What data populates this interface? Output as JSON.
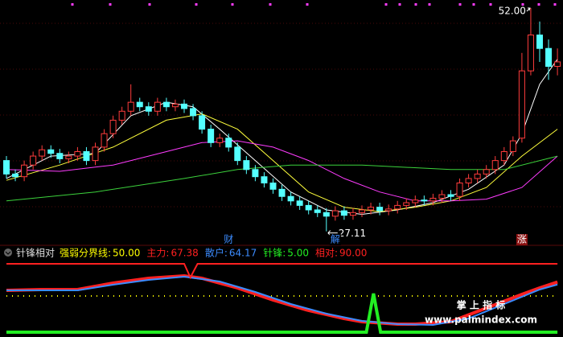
{
  "chart_data": [
    {
      "type": "candlestick",
      "ylim": [
        26.0,
        52.9
      ],
      "up_color": "#ff3c3c",
      "down_color": "#54ffff",
      "open": [
        35.0,
        33.5,
        33.2,
        34.5,
        35.5,
        36.2,
        35.8,
        35.2,
        35.5,
        36.0,
        35.0,
        36.5,
        38.0,
        39.5,
        40.5,
        41.5,
        41.0,
        40.5,
        41.5,
        41.0,
        41.3,
        40.8,
        40.0,
        38.5,
        37.0,
        37.5,
        36.5,
        35.0,
        34.0,
        33.2,
        32.5,
        31.8,
        31.0,
        30.5,
        30.0,
        29.5,
        29.2,
        28.8,
        29.4,
        28.9,
        29.2,
        29.5,
        29.8,
        29.4,
        29.6,
        30.0,
        30.3,
        30.6,
        30.5,
        30.8,
        31.2,
        31.0,
        32.5,
        33.0,
        33.5,
        34.0,
        35.0,
        36.0,
        37.5,
        45.0,
        49.0,
        47.5,
        45.5
      ],
      "high": [
        35.5,
        34.0,
        35.0,
        36.0,
        36.7,
        36.7,
        36.3,
        36.0,
        36.5,
        36.5,
        37.0,
        38.5,
        40.0,
        41.0,
        43.5,
        42.0,
        41.5,
        42.0,
        42.0,
        41.8,
        41.8,
        41.3,
        40.5,
        39.0,
        38.0,
        38.0,
        37.0,
        35.5,
        34.5,
        33.7,
        33.0,
        32.3,
        31.5,
        31.0,
        30.5,
        30.0,
        29.7,
        29.9,
        29.9,
        29.7,
        30.0,
        30.3,
        30.3,
        30.1,
        30.5,
        30.8,
        31.1,
        31.1,
        31.3,
        31.7,
        31.7,
        33.0,
        33.5,
        34.0,
        34.5,
        35.5,
        36.5,
        37.7,
        47.0,
        52.0,
        50.5,
        48.5,
        47.5
      ],
      "low": [
        33.0,
        32.7,
        32.7,
        34.0,
        35.0,
        35.3,
        34.7,
        34.7,
        35.0,
        34.5,
        34.5,
        36.0,
        37.5,
        39.0,
        40.0,
        40.5,
        40.0,
        40.0,
        40.5,
        40.5,
        40.3,
        39.5,
        38.0,
        36.5,
        36.5,
        36.0,
        34.5,
        33.5,
        32.7,
        32.0,
        31.3,
        30.5,
        30.0,
        29.5,
        29.0,
        28.7,
        27.11,
        28.3,
        28.4,
        28.4,
        28.7,
        29.0,
        28.9,
        28.9,
        29.1,
        29.5,
        29.8,
        30.0,
        30.0,
        30.3,
        30.5,
        30.5,
        32.0,
        32.5,
        33.0,
        33.5,
        34.5,
        35.5,
        37.0,
        44.5,
        46.0,
        44.0,
        44.5
      ],
      "close": [
        33.5,
        33.2,
        34.5,
        35.5,
        36.2,
        35.8,
        35.2,
        35.5,
        36.0,
        35.0,
        36.5,
        38.0,
        39.5,
        40.5,
        41.5,
        41.0,
        40.5,
        41.5,
        41.0,
        41.3,
        40.8,
        40.0,
        38.5,
        37.0,
        37.5,
        36.5,
        35.0,
        34.0,
        33.2,
        32.5,
        31.8,
        31.0,
        30.5,
        30.0,
        29.5,
        29.2,
        28.8,
        29.4,
        28.9,
        29.2,
        29.5,
        29.8,
        29.4,
        29.6,
        30.0,
        30.3,
        30.6,
        30.5,
        30.8,
        31.2,
        31.0,
        32.5,
        33.0,
        33.5,
        34.0,
        35.0,
        36.0,
        37.2,
        45.0,
        49.0,
        47.5,
        45.5,
        46.0
      ],
      "series": [
        {
          "color": "#ffffff",
          "x": [
            0,
            5,
            10,
            14,
            18,
            21,
            24,
            28,
            32,
            36,
            40,
            44,
            48,
            52,
            56,
            58,
            60,
            62
          ],
          "values": [
            33.0,
            35.5,
            35.8,
            40.0,
            41.5,
            41.0,
            38.5,
            35.0,
            31.5,
            29.5,
            29.0,
            29.5,
            30.3,
            31.8,
            34.5,
            38.0,
            43.5,
            46.3
          ]
        },
        {
          "color": "#ffff3c",
          "x": [
            0,
            6,
            12,
            18,
            22,
            26,
            30,
            34,
            38,
            42,
            46,
            50,
            54,
            58,
            62
          ],
          "values": [
            32.8,
            34.5,
            36.5,
            39.5,
            40.2,
            38.5,
            35.0,
            31.5,
            29.8,
            29.3,
            29.8,
            30.5,
            32.0,
            35.5,
            38.5
          ]
        },
        {
          "color": "#ff3cff",
          "x": [
            0,
            6,
            12,
            18,
            22,
            26,
            30,
            34,
            38,
            42,
            46,
            50,
            54,
            58,
            62
          ],
          "values": [
            34.0,
            33.8,
            34.5,
            36.0,
            37.0,
            37.2,
            36.5,
            35.0,
            33.0,
            31.5,
            30.5,
            30.5,
            30.7,
            32.0,
            35.5
          ]
        },
        {
          "color": "#3cd23c",
          "x": [
            0,
            10,
            20,
            26,
            32,
            40,
            50,
            56,
            62
          ],
          "values": [
            30.5,
            31.5,
            33.0,
            34.0,
            34.5,
            34.5,
            34.0,
            34.0,
            35.5
          ]
        }
      ],
      "annotations": [
        {
          "value": 52.0,
          "label": "52.00",
          "x": 59
        },
        {
          "value": 27.11,
          "x": 36
        }
      ],
      "events": [
        {
          "label": "财",
          "x": 25
        },
        {
          "label": "解",
          "x": 37
        },
        {
          "label": "涨",
          "x": 58
        }
      ]
    },
    {
      "type": "line",
      "title": "针锋相对",
      "ylim": [
        0,
        110
      ],
      "series": [
        {
          "name": "强弱分界线:",
          "color": "#ffff00",
          "reading": {
            "value": 50,
            "label": "50.00"
          },
          "x": [
            0,
            62
          ],
          "values": [
            50,
            50
          ]
        },
        {
          "name": "主力:",
          "color": "#ff2020",
          "reading": 67.38,
          "x": [
            0,
            4,
            8,
            12,
            16,
            20,
            22,
            26,
            30,
            34,
            38,
            40,
            44,
            46,
            50,
            54,
            58,
            60,
            62
          ],
          "values": [
            57,
            58,
            58,
            66,
            72,
            75,
            72,
            60,
            45,
            32,
            22,
            18,
            15,
            15,
            18,
            35,
            52,
            60,
            67.38
          ]
        },
        {
          "name": "散户:",
          "color": "#3c8cff",
          "reading": 64.17,
          "x": [
            0,
            8,
            12,
            16,
            20,
            24,
            28,
            32,
            36,
            40,
            44,
            48,
            52,
            56,
            60,
            62
          ],
          "values": [
            57,
            57,
            64,
            70,
            74,
            68,
            55,
            40,
            28,
            19,
            15,
            14,
            22,
            40,
            58,
            64.17
          ]
        },
        {
          "name": "针锋:",
          "color": "#22ee22",
          "reading": {
            "value": 5,
            "label": "5.00"
          },
          "x": [
            0,
            40.5,
            41.3,
            42.1,
            62
          ],
          "values": [
            5,
            5,
            53,
            5,
            5
          ]
        },
        {
          "name": "相对:",
          "color": "#ff2020",
          "reading": {
            "value": 90,
            "label": "90.00"
          },
          "x": [
            0,
            20,
            20.7,
            21.5,
            62
          ],
          "values": [
            90,
            90,
            73,
            90,
            90
          ]
        }
      ]
    }
  ],
  "watermark": [
    "掌 上 指 标",
    "www.palmindex.com"
  ]
}
